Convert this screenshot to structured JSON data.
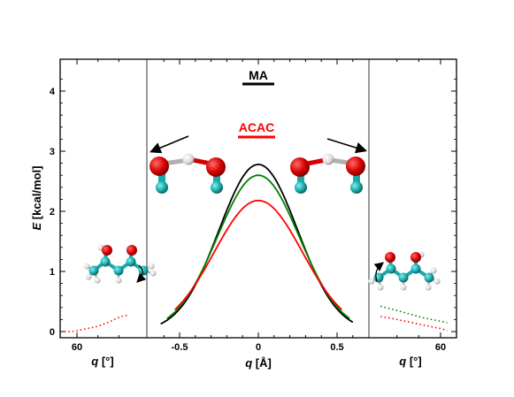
{
  "chart_data": {
    "type": "line",
    "title": "",
    "ylabel": {
      "italic": "E",
      "rest": " [kcal/mol]"
    },
    "ylim": [
      0,
      4.4
    ],
    "yticks": [
      "0",
      "1",
      "2",
      "3",
      "4"
    ],
    "legend": [
      {
        "name": "MA",
        "color": "#000000"
      },
      {
        "name": "ACAC",
        "color": "#ff0000"
      }
    ],
    "panels": {
      "left": {
        "xlabel": {
          "italic": "q",
          "rest": " [°]"
        },
        "xticks": [
          "60"
        ],
        "series": [
          {
            "color": "#ff0000",
            "style": "dotted",
            "x": [
              72,
              65,
              58,
              50,
              42,
              35,
              28,
              22,
              18,
              12
            ],
            "y": [
              0.0,
              0.0,
              0.02,
              0.05,
              0.08,
              0.12,
              0.17,
              0.22,
              0.25,
              0.27
            ]
          }
        ]
      },
      "center": {
        "xlabel": {
          "italic": "q",
          "rest": " [Å]"
        },
        "xticks": [
          "-0.5",
          "0",
          "0.5"
        ],
        "xlim": [
          -0.68,
          0.68
        ],
        "series": [
          {
            "name": "MA",
            "color": "#000000",
            "style": "solid",
            "amplitude": 2.78,
            "width": 0.25,
            "xrange": [
              -0.62,
              0.6
            ]
          },
          {
            "name": "",
            "color": "#008000",
            "style": "solid",
            "amplitude": 2.6,
            "width": 0.26,
            "xrange": [
              -0.58,
              0.58
            ]
          },
          {
            "name": "ACAC",
            "color": "#ff0000",
            "style": "solid",
            "amplitude": 2.18,
            "width": 0.28,
            "xrange": [
              -0.53,
              0.53
            ]
          }
        ]
      },
      "right": {
        "xlabel": {
          "italic": "q",
          "rest": " [°]"
        },
        "xticks": [
          "60"
        ],
        "series": [
          {
            "color": "#008000",
            "style": "dotted",
            "x": [
              5,
              12,
              20,
              28,
              36,
              44,
              52,
              60,
              66
            ],
            "y": [
              0.42,
              0.39,
              0.35,
              0.31,
              0.27,
              0.23,
              0.2,
              0.17,
              0.15
            ]
          },
          {
            "color": "#ff0000",
            "style": "dotted",
            "x": [
              5,
              12,
              20,
              28,
              36,
              44,
              52,
              60,
              66
            ],
            "y": [
              0.25,
              0.23,
              0.2,
              0.17,
              0.14,
              0.11,
              0.08,
              0.05,
              0.02
            ]
          }
        ]
      }
    }
  }
}
